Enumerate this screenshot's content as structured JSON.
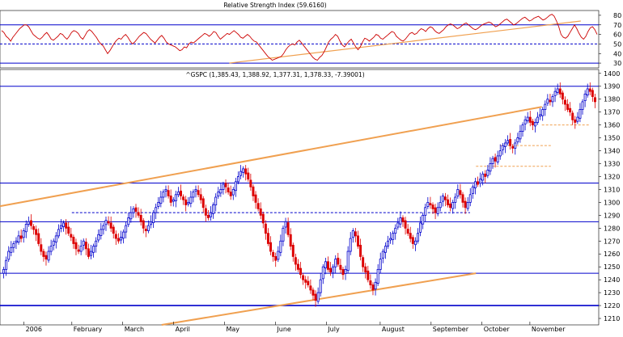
{
  "chart_data": [
    {
      "id": "rsi",
      "type": "line",
      "title": "Relative Strength Index (59.6160)",
      "ylim": [
        25,
        85
      ],
      "yticks": [
        30,
        40,
        50,
        60,
        70,
        80
      ],
      "reference_lines": [
        {
          "value": 70,
          "style": "solid",
          "color": "#0000cc"
        },
        {
          "value": 50,
          "style": "dashed",
          "color": "#0000cc"
        },
        {
          "value": 30,
          "style": "solid",
          "color": "#0000cc"
        }
      ],
      "series": [
        {
          "color": "#cc0000",
          "values": [
            64,
            62,
            58,
            56,
            53,
            57,
            60,
            63,
            66,
            68,
            70,
            70,
            68,
            64,
            60,
            58,
            56,
            55,
            57,
            60,
            62,
            59,
            55,
            54,
            56,
            58,
            61,
            60,
            57,
            55,
            58,
            62,
            64,
            63,
            61,
            57,
            55,
            59,
            63,
            65,
            63,
            60,
            57,
            53,
            50,
            48,
            44,
            40,
            43,
            47,
            51,
            54,
            56,
            55,
            58,
            60,
            57,
            53,
            50,
            52,
            55,
            58,
            60,
            62,
            61,
            58,
            55,
            53,
            51,
            54,
            57,
            59,
            56,
            52,
            50,
            49,
            48,
            47,
            45,
            43,
            44,
            47,
            46,
            50,
            52,
            51,
            53,
            55,
            57,
            59,
            61,
            60,
            58,
            60,
            63,
            62,
            58,
            55,
            57,
            59,
            61,
            60,
            62,
            64,
            62,
            60,
            57,
            56,
            58,
            60,
            58,
            55,
            53,
            52,
            49,
            46,
            43,
            40,
            37,
            35,
            33,
            34,
            35,
            36,
            37,
            40,
            44,
            47,
            49,
            50,
            49,
            52,
            54,
            51,
            48,
            45,
            42,
            39,
            36,
            34,
            33,
            36,
            38,
            42,
            47,
            52,
            55,
            57,
            60,
            58,
            53,
            49,
            47,
            50,
            53,
            55,
            51,
            47,
            44,
            47,
            52,
            56,
            55,
            53,
            55,
            57,
            60,
            59,
            56,
            55,
            57,
            59,
            61,
            63,
            62,
            58,
            56,
            54,
            53,
            55,
            58,
            61,
            62,
            60,
            61,
            64,
            66,
            65,
            63,
            66,
            68,
            67,
            64,
            62,
            61,
            63,
            65,
            68,
            70,
            71,
            70,
            68,
            66,
            67,
            69,
            71,
            72,
            70,
            68,
            66,
            65,
            66,
            68,
            70,
            71,
            72,
            73,
            72,
            70,
            68,
            69,
            71,
            73,
            75,
            76,
            74,
            72,
            70,
            71,
            73,
            75,
            77,
            78,
            76,
            74,
            75,
            77,
            78,
            79,
            77,
            75,
            76,
            78,
            80,
            81,
            79,
            74,
            68,
            60,
            57,
            56,
            58,
            62,
            66,
            70,
            66,
            61,
            57,
            55,
            58,
            63,
            67,
            68,
            65,
            60
          ]
        }
      ],
      "trendlines": [
        {
          "color": "#f0a050",
          "points": [
            [
              0.383,
              30
            ],
            [
              0.97,
              74
            ]
          ]
        }
      ]
    },
    {
      "id": "price",
      "type": "candlestick",
      "title": "^GSPC (1,385.43, 1,388.92, 1,377.31, 1,378.33, -7.39001)",
      "ylim": [
        1205,
        1403
      ],
      "yticks": [
        1210,
        1220,
        1230,
        1240,
        1250,
        1260,
        1270,
        1280,
        1290,
        1300,
        1310,
        1320,
        1330,
        1340,
        1350,
        1360,
        1370,
        1380,
        1390,
        1400
      ],
      "x_tick_labels": [
        "2006",
        "February",
        "March",
        "April",
        "May",
        "June",
        "July",
        "August",
        "September",
        "October",
        "November"
      ],
      "x_tick_positions": [
        0.04,
        0.12,
        0.205,
        0.29,
        0.375,
        0.46,
        0.545,
        0.635,
        0.72,
        0.805,
        0.885
      ],
      "close_series": [
        1248,
        1255,
        1262,
        1265,
        1268,
        1270,
        1274,
        1272,
        1278,
        1283,
        1285,
        1282,
        1279,
        1275,
        1268,
        1262,
        1258,
        1256,
        1262,
        1266,
        1270,
        1274,
        1279,
        1282,
        1284,
        1280,
        1276,
        1273,
        1268,
        1264,
        1262,
        1266,
        1270,
        1264,
        1258,
        1262,
        1266,
        1270,
        1275,
        1279,
        1282,
        1286,
        1284,
        1280,
        1276,
        1272,
        1270,
        1273,
        1277,
        1282,
        1288,
        1292,
        1295,
        1293,
        1290,
        1285,
        1280,
        1278,
        1282,
        1285,
        1292,
        1296,
        1300,
        1304,
        1308,
        1310,
        1305,
        1300,
        1302,
        1306,
        1308,
        1305,
        1302,
        1298,
        1300,
        1304,
        1308,
        1310,
        1306,
        1302,
        1296,
        1290,
        1288,
        1292,
        1298,
        1304,
        1308,
        1310,
        1314,
        1312,
        1308,
        1305,
        1310,
        1316,
        1320,
        1324,
        1326,
        1322,
        1318,
        1312,
        1305,
        1300,
        1295,
        1290,
        1284,
        1276,
        1268,
        1262,
        1258,
        1255,
        1262,
        1270,
        1280,
        1285,
        1275,
        1266,
        1258,
        1252,
        1248,
        1244,
        1240,
        1238,
        1236,
        1232,
        1228,
        1224,
        1230,
        1240,
        1250,
        1254,
        1248,
        1246,
        1250,
        1256,
        1252,
        1248,
        1244,
        1248,
        1262,
        1272,
        1278,
        1274,
        1266,
        1258,
        1250,
        1246,
        1240,
        1236,
        1232,
        1238,
        1248,
        1256,
        1262,
        1266,
        1270,
        1272,
        1276,
        1280,
        1284,
        1288,
        1285,
        1280,
        1276,
        1272,
        1268,
        1270,
        1276,
        1284,
        1290,
        1296,
        1300,
        1298,
        1295,
        1292,
        1296,
        1300,
        1305,
        1302,
        1298,
        1296,
        1300,
        1304,
        1310,
        1306,
        1300,
        1296,
        1300,
        1306,
        1312,
        1316,
        1314,
        1318,
        1322,
        1320,
        1325,
        1330,
        1334,
        1332,
        1336,
        1340,
        1344,
        1346,
        1348,
        1344,
        1342,
        1346,
        1350,
        1355,
        1360,
        1364,
        1366,
        1362,
        1360,
        1362,
        1366,
        1368,
        1372,
        1376,
        1380,
        1378,
        1382,
        1386,
        1388,
        1384,
        1380,
        1376,
        1372,
        1370,
        1364,
        1362,
        1366,
        1372,
        1378,
        1384,
        1388,
        1386,
        1382,
        1378
      ]
    }
  ]
}
